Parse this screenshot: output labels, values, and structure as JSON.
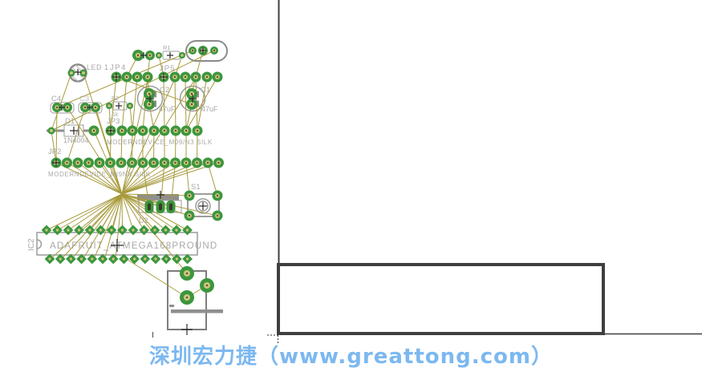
{
  "board": {
    "components": {
      "led1": {
        "name": "LED 1"
      },
      "jp4": {
        "name": "JP4"
      },
      "jp5": {
        "name": "JP5"
      },
      "r1": {
        "name": "R1"
      },
      "r2": {
        "name": "R2",
        "value": "1k"
      },
      "c2": {
        "name": "C2",
        "value": "47uF"
      },
      "c1": {
        "name": "C1",
        "value": "47uF"
      },
      "c4": {
        "name": "C4"
      },
      "c3": {
        "name": "C3"
      },
      "d1": {
        "name": "D1",
        "value": "1N4004"
      },
      "d2": {
        "name": "D2"
      },
      "jp3": {
        "name": "JP3",
        "silk": "MODERNDEVICE_M09/N3 SILK"
      },
      "jp2": {
        "name": "JP2",
        "silk": "MODERNDEVICE_MI9NX SILK"
      },
      "s1": {
        "name": "S1"
      },
      "ic2": {
        "name": "IC2",
        "value": "ADAFRUIT_ATMEGA168PROUND"
      }
    },
    "colors": {
      "wire": "#a89b3e",
      "pad": "#3c963c",
      "hole": "#cdc37f",
      "holeDot": "#55552b",
      "cross": "#2e2e2e",
      "outline": "#9c9c9c",
      "frame": "#3f3f3f"
    },
    "pcb": {
      "wires": [
        [
          152,
          242,
          58,
          287
        ],
        [
          152,
          242,
          71.5,
          287
        ],
        [
          152,
          242,
          85,
          287
        ],
        [
          152,
          242,
          98.5,
          287
        ],
        [
          152,
          242,
          112,
          287
        ],
        [
          152,
          242,
          125.5,
          287
        ],
        [
          152,
          242,
          139,
          287
        ],
        [
          152,
          242,
          152.5,
          287
        ],
        [
          152,
          242,
          166,
          287
        ],
        [
          152,
          242,
          179.5,
          287
        ],
        [
          152,
          242,
          193,
          287
        ],
        [
          152,
          242,
          206.5,
          287
        ],
        [
          152,
          242,
          220,
          287
        ],
        [
          152,
          242,
          233.5,
          287
        ],
        [
          152,
          242,
          63,
          323
        ],
        [
          152,
          242,
          76.5,
          323
        ],
        [
          152,
          242,
          90,
          323
        ],
        [
          152,
          242,
          103.5,
          323
        ],
        [
          152,
          242,
          117,
          323
        ],
        [
          152,
          242,
          130.5,
          323
        ],
        [
          152,
          242,
          144,
          323
        ],
        [
          152,
          242,
          70,
          203
        ],
        [
          152,
          242,
          83.5,
          203
        ],
        [
          152,
          242,
          97,
          203
        ],
        [
          152,
          242,
          110.5,
          203
        ],
        [
          152,
          242,
          124,
          203
        ],
        [
          152,
          242,
          137.5,
          203
        ],
        [
          152,
          242,
          164.5,
          203
        ],
        [
          152,
          242,
          178,
          203
        ],
        [
          152,
          242,
          191.5,
          203
        ],
        [
          152,
          242,
          205,
          203
        ],
        [
          152,
          242,
          218.5,
          203
        ],
        [
          152,
          242,
          232,
          203
        ],
        [
          152,
          242,
          245.5,
          203
        ],
        [
          152,
          242,
          259,
          203
        ],
        [
          152,
          242,
          272.5,
          203
        ],
        [
          152,
          242,
          236,
          244
        ],
        [
          152,
          242,
          236,
          269
        ],
        [
          152,
          242,
          271,
          269
        ],
        [
          152,
          242,
          186,
          258
        ],
        [
          152,
          242,
          200,
          258
        ],
        [
          152,
          242,
          213,
          258
        ],
        [
          152,
          242,
          233,
          341
        ],
        [
          104,
          91,
          152,
          242
        ],
        [
          89,
          91,
          64,
          163
        ],
        [
          84,
          134,
          152,
          242
        ],
        [
          119,
          134,
          152,
          242
        ],
        [
          117,
          163,
          152,
          242
        ],
        [
          219,
          96,
          152,
          242
        ],
        [
          245,
          96,
          152,
          242
        ],
        [
          185,
          96,
          152,
          242
        ],
        [
          204,
          96,
          205,
          163
        ],
        [
          218,
          96,
          219,
          163
        ],
        [
          231,
          96,
          232,
          163
        ],
        [
          244,
          96,
          246,
          163
        ],
        [
          258,
          96,
          246,
          163
        ],
        [
          271,
          96,
          232,
          163
        ],
        [
          145,
          96,
          138,
          163
        ],
        [
          158,
          96,
          152,
          163
        ],
        [
          171,
          96,
          165,
          163
        ],
        [
          184,
          96,
          178,
          163
        ],
        [
          138,
          163,
          137.5,
          203
        ],
        [
          152,
          163,
          151,
          203
        ],
        [
          165,
          163,
          164.5,
          203
        ],
        [
          178,
          163,
          178,
          203
        ],
        [
          192,
          163,
          191.5,
          203
        ],
        [
          205,
          163,
          205,
          203
        ],
        [
          219,
          163,
          218.5,
          203
        ],
        [
          232,
          163,
          232,
          203
        ],
        [
          246,
          163,
          245.5,
          203
        ],
        [
          186,
          117,
          184,
          96
        ],
        [
          186,
          130,
          192,
          163
        ],
        [
          239,
          117,
          244,
          96
        ],
        [
          239,
          130,
          232,
          163
        ],
        [
          198,
          69,
          204,
          96
        ],
        [
          227,
          69,
          218,
          96
        ],
        [
          172,
          69,
          158,
          96
        ],
        [
          187,
          69,
          184,
          96
        ],
        [
          240,
          63,
          71,
          134
        ],
        [
          267,
          63,
          64,
          163
        ],
        [
          253,
          63,
          244,
          96
        ],
        [
          71,
          134,
          70,
          203
        ],
        [
          106,
          134,
          83.5,
          203
        ],
        [
          64,
          163,
          70,
          203
        ],
        [
          136,
          132,
          138,
          163
        ],
        [
          162,
          132,
          165,
          163
        ],
        [
          186,
          258,
          178,
          203
        ],
        [
          200,
          258,
          205,
          203
        ],
        [
          213,
          258,
          218.5,
          203
        ],
        [
          271,
          244,
          259,
          203
        ],
        [
          236,
          244,
          232,
          203
        ],
        [
          258,
          356,
          233,
          371
        ],
        [
          157.5,
          323,
          233,
          371
        ],
        [
          145,
          96,
          239,
          130
        ]
      ],
      "round_pads": [
        [
          89,
          91,
          4.5
        ],
        [
          104,
          91,
          4.5
        ],
        [
          145,
          96,
          6.5
        ],
        [
          158,
          96,
          6.5
        ],
        [
          171,
          96,
          6.5
        ],
        [
          184,
          96,
          6.5
        ],
        [
          204,
          96,
          6.5
        ],
        [
          218,
          96,
          6.5
        ],
        [
          231,
          96,
          6.5
        ],
        [
          244,
          96,
          6.5
        ],
        [
          258,
          96,
          6.5
        ],
        [
          271,
          96,
          6.5
        ],
        [
          198,
          69,
          4
        ],
        [
          227,
          69,
          4
        ],
        [
          172,
          69,
          7
        ],
        [
          187,
          69,
          6
        ],
        [
          240,
          63,
          5
        ],
        [
          253,
          63,
          6
        ],
        [
          267,
          63,
          5
        ],
        [
          186,
          117,
          7
        ],
        [
          186,
          130,
          7
        ],
        [
          239,
          117,
          7
        ],
        [
          239,
          130,
          7
        ],
        [
          136,
          132,
          4
        ],
        [
          162,
          132,
          4
        ],
        [
          71,
          134,
          6
        ],
        [
          84,
          134,
          6
        ],
        [
          106,
          134,
          6
        ],
        [
          119,
          134,
          6
        ],
        [
          64,
          163,
          4.5
        ],
        [
          117,
          163,
          6.5
        ],
        [
          138,
          163,
          6.5
        ],
        [
          152,
          163,
          6.5
        ],
        [
          165,
          163,
          6.5
        ],
        [
          178,
          163,
          6.5
        ],
        [
          192,
          163,
          6.5
        ],
        [
          205,
          163,
          6.5
        ],
        [
          219,
          163,
          6.5
        ],
        [
          232,
          163,
          6.5
        ],
        [
          246,
          163,
          6.5
        ],
        [
          70,
          203,
          6.5
        ],
        [
          83.5,
          203,
          6.5
        ],
        [
          97,
          203,
          6.5
        ],
        [
          110.5,
          203,
          6.5
        ],
        [
          124,
          203,
          6.5
        ],
        [
          137.5,
          203,
          6.5
        ],
        [
          151,
          203,
          6.5
        ],
        [
          164.5,
          203,
          6.5
        ],
        [
          178,
          203,
          6.5
        ],
        [
          191.5,
          203,
          6.5
        ],
        [
          205,
          203,
          6.5
        ],
        [
          218.5,
          203,
          6.5
        ],
        [
          232,
          203,
          6.5
        ],
        [
          245.5,
          203,
          6.5
        ],
        [
          259,
          203,
          6.5
        ],
        [
          272.5,
          203,
          6.5
        ],
        [
          236,
          244,
          6.5
        ],
        [
          271,
          244,
          6.5
        ],
        [
          236,
          269,
          6.5
        ],
        [
          271,
          269,
          6.5
        ],
        [
          233,
          341,
          9
        ],
        [
          258,
          356,
          9
        ],
        [
          233,
          371,
          9
        ]
      ],
      "diamond_pads": [
        [
          58,
          287
        ],
        [
          71.5,
          287
        ],
        [
          85,
          287
        ],
        [
          98.5,
          287
        ],
        [
          112,
          287
        ],
        [
          125.5,
          287
        ],
        [
          139,
          287
        ],
        [
          152.5,
          287
        ],
        [
          166,
          287
        ],
        [
          179.5,
          287
        ],
        [
          193,
          287
        ],
        [
          206.5,
          287
        ],
        [
          220,
          287
        ],
        [
          233.5,
          287
        ],
        [
          62,
          323
        ],
        [
          75.2,
          323
        ],
        [
          88.4,
          323
        ],
        [
          101.6,
          323
        ],
        [
          114.8,
          323
        ],
        [
          128,
          323
        ],
        [
          141.2,
          323
        ],
        [
          154.4,
          323
        ],
        [
          167.6,
          323
        ],
        [
          180.8,
          323
        ],
        [
          194,
          323
        ],
        [
          207.2,
          323
        ],
        [
          220.4,
          323
        ],
        [
          233.6,
          323
        ]
      ],
      "slot_pads": [
        [
          186,
          258
        ],
        [
          200,
          258
        ],
        [
          213,
          258
        ]
      ],
      "crosshairs": [
        [
          97,
          90,
          4
        ],
        [
          145,
          96,
          5
        ],
        [
          204,
          96,
          5
        ],
        [
          179,
          69,
          4
        ],
        [
          212,
          69,
          4
        ],
        [
          253,
          63,
          4
        ],
        [
          187,
          123,
          5
        ],
        [
          240,
          123,
          5
        ],
        [
          148,
          132,
          4
        ],
        [
          77,
          134,
          4
        ],
        [
          112,
          134,
          4
        ],
        [
          92,
          163,
          5
        ],
        [
          138,
          163,
          5
        ],
        [
          70,
          203,
          5
        ],
        [
          200,
          243,
          5
        ],
        [
          253,
          257,
          5
        ],
        [
          146,
          306,
          8
        ],
        [
          233,
          411,
          7
        ]
      ]
    }
  },
  "watermark": {
    "text": "深圳宏力捷（www.greattong.com）",
    "color": "#7cb8f0"
  }
}
